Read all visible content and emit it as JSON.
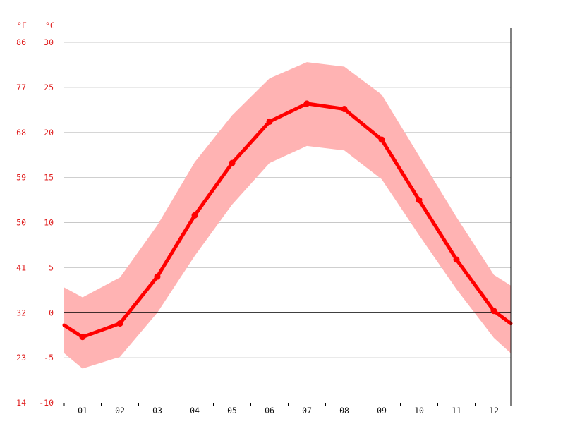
{
  "colors": {
    "series_line": "#ff0000",
    "band_fill": "#ffb3b3",
    "axis_text": "#e02020",
    "grid": "#c8c8c8",
    "zero_line": "#000000",
    "x_text": "#111111"
  },
  "chart_data": {
    "type": "line",
    "title": "",
    "xlabel": "",
    "ylabel": "",
    "unit_labels": {
      "fahrenheit": "°F",
      "celsius": "°C"
    },
    "x": [
      "01",
      "02",
      "03",
      "04",
      "05",
      "06",
      "07",
      "08",
      "09",
      "10",
      "11",
      "12"
    ],
    "ylim": [
      -10,
      30
    ],
    "yticks_c": [
      "-10",
      "-5",
      "0",
      "5",
      "10",
      "15",
      "20",
      "25",
      "30"
    ],
    "yticks_f": [
      "14",
      "23",
      "32",
      "41",
      "50",
      "59",
      "68",
      "77",
      "86"
    ],
    "grid": true,
    "series": [
      {
        "values": [
          -2.7,
          -1.2,
          4.0,
          10.8,
          16.6,
          21.2,
          23.2,
          22.6,
          19.2,
          12.5,
          5.9,
          0.2
        ]
      }
    ],
    "band": {
      "upper": [
        1.7,
        3.9,
        9.7,
        16.7,
        21.9,
        26.0,
        27.8,
        27.3,
        24.2,
        17.4,
        10.6,
        4.2
      ],
      "lower": [
        -6.2,
        -4.9,
        0.0,
        6.3,
        12.0,
        16.6,
        18.5,
        18.0,
        14.8,
        8.6,
        2.6,
        -2.8
      ]
    },
    "edge_values": {
      "left": {
        "value": -1.4,
        "upper": 2.8,
        "lower": -4.5
      },
      "right": {
        "value": -1.2,
        "upper": 3.0,
        "lower": -4.5
      }
    }
  }
}
